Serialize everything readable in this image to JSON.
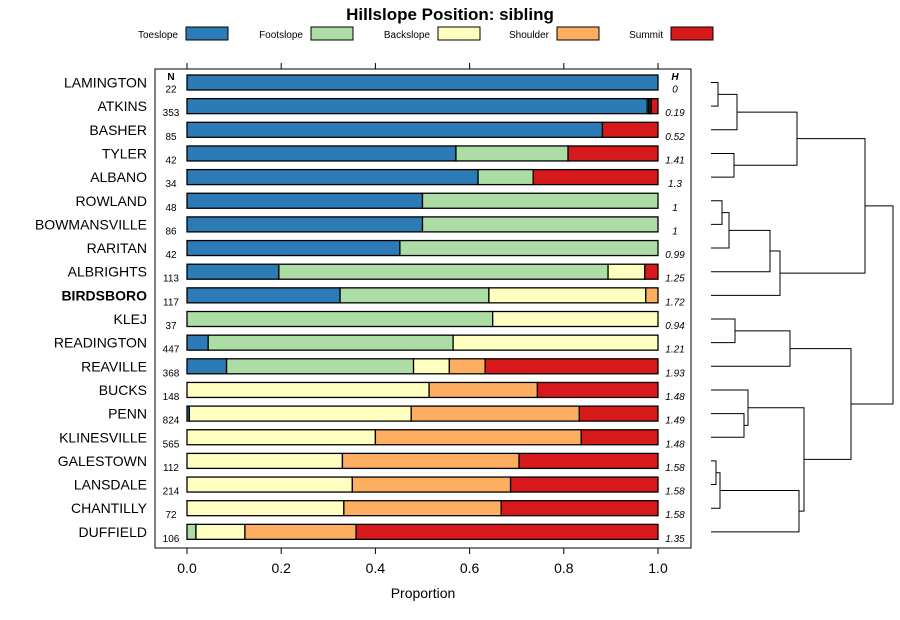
{
  "chart_data": {
    "type": "stacked-bar-horizontal",
    "title": "Hillslope Position: sibling",
    "xlabel": "Proportion",
    "xlim": [
      0,
      1
    ],
    "xticks": [
      "0.0",
      "0.2",
      "0.4",
      "0.6",
      "0.8",
      "1.0"
    ],
    "xtick_values": [
      0,
      0.2,
      0.4,
      0.6,
      0.8,
      1.0
    ],
    "n_header": "N",
    "h_header": "H",
    "highlighted": "BIRDSBORO",
    "series": [
      {
        "name": "Toeslope",
        "color": "#2c7bb6"
      },
      {
        "name": "Footslope",
        "color": "#abdda4"
      },
      {
        "name": "Backslope",
        "color": "#ffffbf"
      },
      {
        "name": "Shoulder",
        "color": "#fdae61"
      },
      {
        "name": "Summit",
        "color": "#d7191c"
      }
    ],
    "rows": [
      {
        "label": "LAMINGTON",
        "n": "22",
        "h": "0",
        "values": [
          1.0,
          0,
          0,
          0,
          0
        ]
      },
      {
        "label": "ATKINS",
        "n": "353",
        "h": "0.19",
        "values": [
          0.977,
          0.003,
          0.003,
          0.003,
          0.014
        ]
      },
      {
        "label": "BASHER",
        "n": "85",
        "h": "0.52",
        "values": [
          0.882,
          0,
          0,
          0,
          0.118
        ]
      },
      {
        "label": "TYLER",
        "n": "42",
        "h": "1.41",
        "values": [
          0.571,
          0.238,
          0,
          0,
          0.191
        ]
      },
      {
        "label": "ALBANO",
        "n": "34",
        "h": "1.3",
        "values": [
          0.618,
          0.117,
          0,
          0,
          0.265
        ]
      },
      {
        "label": "ROWLAND",
        "n": "48",
        "h": "1",
        "values": [
          0.5,
          0.5,
          0,
          0,
          0
        ]
      },
      {
        "label": "BOWMANSVILLE",
        "n": "86",
        "h": "1",
        "values": [
          0.5,
          0.5,
          0,
          0,
          0
        ]
      },
      {
        "label": "RARITAN",
        "n": "42",
        "h": "0.99",
        "values": [
          0.452,
          0.548,
          0,
          0,
          0
        ]
      },
      {
        "label": "ALBRIGHTS",
        "n": "113",
        "h": "1.25",
        "values": [
          0.195,
          0.699,
          0.078,
          0,
          0.028
        ]
      },
      {
        "label": "BIRDSBORO",
        "n": "117",
        "h": "1.72",
        "values": [
          0.325,
          0.316,
          0.333,
          0.026,
          0
        ]
      },
      {
        "label": "KLEJ",
        "n": "37",
        "h": "0.94",
        "values": [
          0,
          0.649,
          0.351,
          0,
          0
        ]
      },
      {
        "label": "READINGTON",
        "n": "447",
        "h": "1.21",
        "values": [
          0.045,
          0.52,
          0.435,
          0,
          0
        ]
      },
      {
        "label": "REAVILLE",
        "n": "368",
        "h": "1.93",
        "values": [
          0.084,
          0.397,
          0.076,
          0.076,
          0.367
        ]
      },
      {
        "label": "BUCKS",
        "n": "148",
        "h": "1.48",
        "values": [
          0,
          0,
          0.514,
          0.23,
          0.256
        ]
      },
      {
        "label": "PENN",
        "n": "824",
        "h": "1.49",
        "values": [
          0.005,
          0,
          0.471,
          0.357,
          0.167
        ]
      },
      {
        "label": "KLINESVILLE",
        "n": "565",
        "h": "1.48",
        "values": [
          0,
          0,
          0.4,
          0.437,
          0.163
        ]
      },
      {
        "label": "GALESTOWN",
        "n": "112",
        "h": "1.58",
        "values": [
          0,
          0,
          0.33,
          0.375,
          0.295
        ]
      },
      {
        "label": "LANSDALE",
        "n": "214",
        "h": "1.58",
        "values": [
          0,
          0,
          0.351,
          0.336,
          0.313
        ]
      },
      {
        "label": "CHANTILLY",
        "n": "72",
        "h": "1.58",
        "values": [
          0,
          0,
          0.333,
          0.334,
          0.333
        ]
      },
      {
        "label": "DUFFIELD",
        "n": "106",
        "h": "1.35",
        "values": [
          0,
          0.019,
          0.104,
          0.236,
          0.641
        ]
      }
    ]
  }
}
